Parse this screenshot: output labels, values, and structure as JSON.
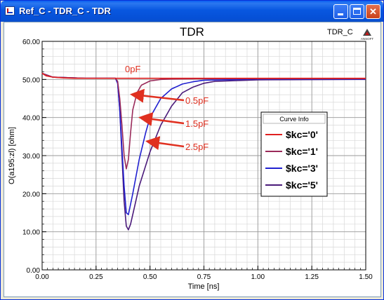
{
  "window": {
    "title": "Ref_C - TDR_C - TDR",
    "title_bar_color": "#0a5ff2"
  },
  "chart_title": "TDR",
  "ref_label": "TDR_C",
  "logo": {
    "icon": "ansoft-logo-icon",
    "text": "ANSOFT"
  },
  "chart_data": {
    "type": "line",
    "title": "TDR",
    "xlabel": "Time [ns]",
    "ylabel": "O(a195:zl) [ohm]",
    "xlim": [
      0,
      1.5
    ],
    "ylim": [
      0,
      60
    ],
    "xticks": [
      "0.00",
      "0.25",
      "0.50",
      "0.75",
      "1.00",
      "1.25",
      "1.50"
    ],
    "yticks": [
      "0.00",
      "10.00",
      "20.00",
      "30.00",
      "40.00",
      "50.00",
      "60.00"
    ],
    "grid": true,
    "legend": {
      "title": "Curve Info",
      "placement": "right"
    },
    "series": [
      {
        "name": "$kc='0'",
        "color": "#e02020",
        "x": [
          0,
          0.005,
          0.02,
          0.05,
          0.1,
          0.15,
          0.2,
          0.3,
          0.36,
          0.5,
          0.75,
          1.0,
          1.25,
          1.5
        ],
        "y": [
          51.7,
          51.4,
          50.9,
          50.6,
          50.4,
          50.3,
          50.3,
          50.3,
          50.3,
          50.3,
          50.3,
          50.3,
          50.3,
          50.3
        ]
      },
      {
        "name": "$kc='1'",
        "color": "#9a2a5a",
        "x": [
          0,
          0.05,
          0.2,
          0.34,
          0.35,
          0.36,
          0.37,
          0.38,
          0.39,
          0.4,
          0.41,
          0.42,
          0.44,
          0.46,
          0.5,
          0.55,
          0.6,
          0.75,
          1.0,
          1.5
        ],
        "y": [
          51.6,
          50.6,
          50.3,
          50.3,
          49.5,
          45,
          38,
          30,
          26.5,
          29,
          36,
          42,
          46.5,
          48.5,
          49.6,
          50,
          50.1,
          50.2,
          50.2,
          50.2
        ]
      },
      {
        "name": "$kc='3'",
        "color": "#2020d0",
        "x": [
          0,
          0.05,
          0.2,
          0.34,
          0.35,
          0.36,
          0.37,
          0.38,
          0.39,
          0.4,
          0.42,
          0.45,
          0.48,
          0.5,
          0.55,
          0.6,
          0.65,
          0.7,
          0.75,
          1.0,
          1.5
        ],
        "y": [
          51.6,
          50.6,
          50.3,
          50.3,
          49,
          42,
          32,
          22,
          15,
          14.5,
          20,
          29,
          36,
          40,
          45,
          47.5,
          48.8,
          49.4,
          49.8,
          50.1,
          50.1
        ]
      },
      {
        "name": "$kc='5'",
        "color": "#4a1a7a",
        "x": [
          0,
          0.05,
          0.2,
          0.34,
          0.35,
          0.36,
          0.37,
          0.38,
          0.39,
          0.4,
          0.41,
          0.43,
          0.45,
          0.5,
          0.55,
          0.6,
          0.65,
          0.7,
          0.75,
          0.8,
          1.0,
          1.5
        ],
        "y": [
          51.6,
          50.6,
          50.3,
          50.3,
          49,
          42,
          30,
          18,
          11.5,
          10.5,
          12,
          17,
          22,
          31,
          38,
          43,
          46.5,
          48,
          49,
          49.5,
          49.9,
          50
        ]
      }
    ],
    "annotations": [
      {
        "text": "0pF",
        "color": "#e03020"
      },
      {
        "text": "0.5pF",
        "color": "#e03020"
      },
      {
        "text": "1.5pF",
        "color": "#e03020"
      },
      {
        "text": "2.5pF",
        "color": "#e03020"
      }
    ]
  }
}
